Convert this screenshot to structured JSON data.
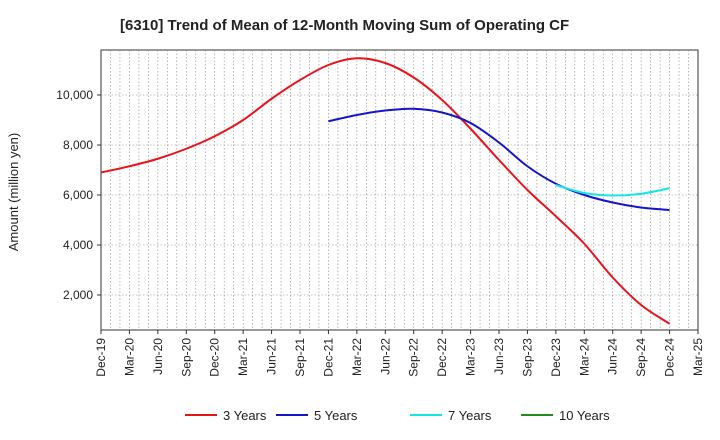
{
  "chart_data": {
    "type": "line",
    "title": "[6310]  Trend of Mean of 12-Month Moving Sum of Operating CF",
    "xlabel": "",
    "ylabel": "Amount (million yen)",
    "ylim": [
      600,
      11800
    ],
    "yticks": [
      2000,
      4000,
      6000,
      8000,
      10000
    ],
    "ytick_labels": [
      "2,000",
      "4,000",
      "6,000",
      "8,000",
      "10,000"
    ],
    "x_start": "Dec-19",
    "x_end": "Mar-25",
    "xtick_labels": [
      "Dec-19",
      "Mar-20",
      "Jun-20",
      "Sep-20",
      "Dec-20",
      "Mar-21",
      "Jun-21",
      "Sep-21",
      "Dec-21",
      "Mar-22",
      "Jun-22",
      "Sep-22",
      "Dec-22",
      "Mar-23",
      "Jun-23",
      "Sep-23",
      "Dec-23",
      "Mar-24",
      "Jun-24",
      "Sep-24",
      "Dec-24",
      "Mar-25"
    ],
    "grid": true,
    "legend_position": "bottom",
    "series": [
      {
        "name": "3 Years",
        "color": "#e8141b",
        "points": [
          [
            0,
            6900
          ],
          [
            3,
            7150
          ],
          [
            6,
            7450
          ],
          [
            9,
            7850
          ],
          [
            12,
            8350
          ],
          [
            15,
            9000
          ],
          [
            18,
            9850
          ],
          [
            21,
            10600
          ],
          [
            24,
            11200
          ],
          [
            27,
            11470
          ],
          [
            30,
            11280
          ],
          [
            33,
            10700
          ],
          [
            36,
            9800
          ],
          [
            39,
            8650
          ],
          [
            42,
            7400
          ],
          [
            45,
            6200
          ],
          [
            48,
            5150
          ],
          [
            51,
            4050
          ],
          [
            54,
            2700
          ],
          [
            57,
            1600
          ],
          [
            60,
            850
          ]
        ]
      },
      {
        "name": "5 Years",
        "color": "#1414c8",
        "points": [
          [
            24,
            8950
          ],
          [
            27,
            9200
          ],
          [
            30,
            9380
          ],
          [
            33,
            9450
          ],
          [
            36,
            9300
          ],
          [
            39,
            8880
          ],
          [
            42,
            8100
          ],
          [
            45,
            7150
          ],
          [
            48,
            6450
          ],
          [
            51,
            6000
          ],
          [
            54,
            5700
          ],
          [
            57,
            5500
          ],
          [
            60,
            5400
          ]
        ]
      },
      {
        "name": "7 Years",
        "color": "#14e6e6",
        "points": [
          [
            48,
            6400
          ],
          [
            51,
            6080
          ],
          [
            54,
            5980
          ],
          [
            57,
            6050
          ],
          [
            60,
            6270
          ]
        ]
      },
      {
        "name": "10 Years",
        "color": "#1e8c1e",
        "points": []
      }
    ]
  }
}
